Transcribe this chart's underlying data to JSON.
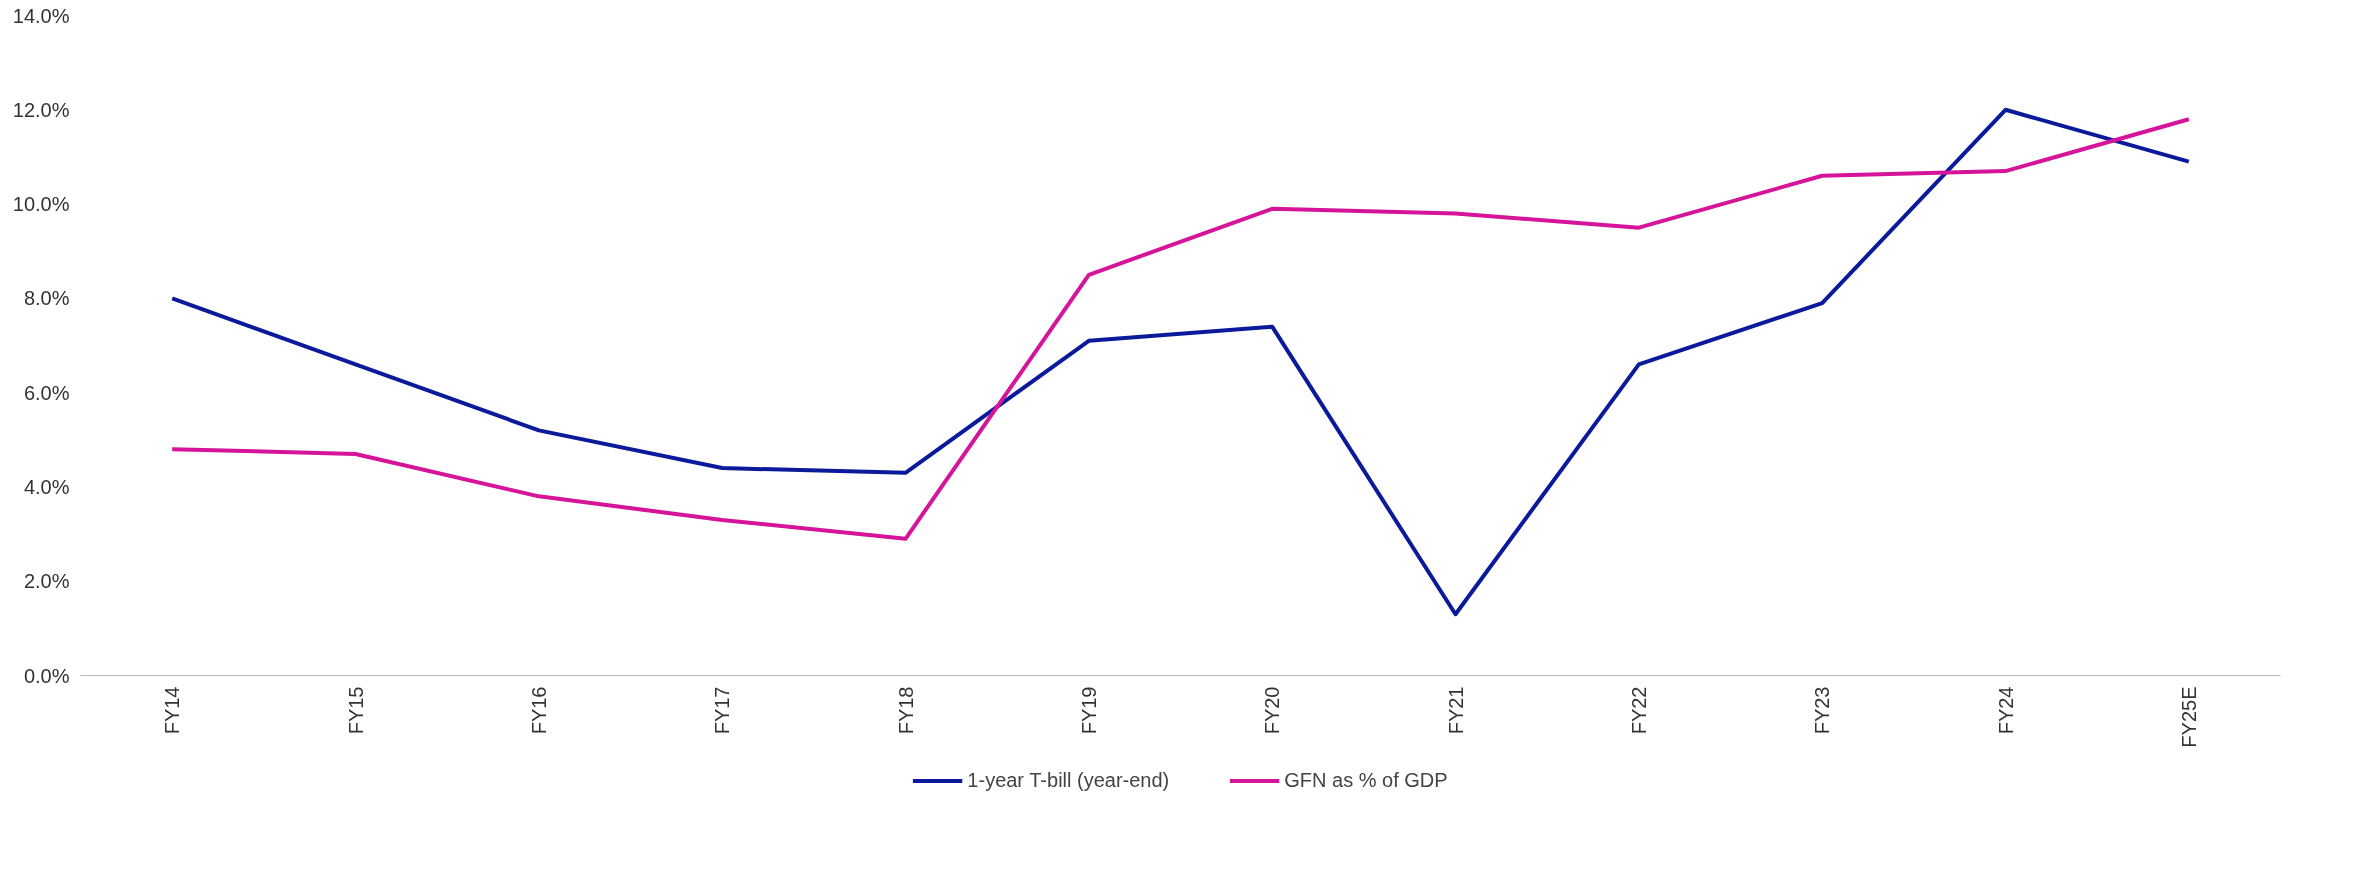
{
  "chart_data": {
    "type": "line",
    "categories": [
      "FY14",
      "FY15",
      "FY16",
      "FY17",
      "FY18",
      "FY19",
      "FY20",
      "FY21",
      "FY22",
      "FY23",
      "FY24",
      "FY25E"
    ],
    "series": [
      {
        "name": "1-year T-bill (year-end)",
        "color": "#0a1a9a",
        "values": [
          8.0,
          6.6,
          5.2,
          4.4,
          4.3,
          7.1,
          7.4,
          1.3,
          6.6,
          7.9,
          12.0,
          10.9
        ]
      },
      {
        "name": "GFN as % of GDP",
        "color": "#d6149a",
        "values": [
          4.8,
          4.7,
          3.8,
          3.3,
          2.9,
          8.5,
          9.9,
          9.8,
          9.5,
          10.6,
          10.7,
          11.8
        ]
      }
    ],
    "ylim": [
      0,
      14
    ],
    "yticks": [
      {
        "value": 0,
        "label": "0.0%"
      },
      {
        "value": 2,
        "label": "2.0%"
      },
      {
        "value": 4,
        "label": "4.0%"
      },
      {
        "value": 6,
        "label": "6.0%"
      },
      {
        "value": 8,
        "label": "8.0%"
      },
      {
        "value": 10,
        "label": "10.0%"
      },
      {
        "value": 12,
        "label": "12.0%"
      },
      {
        "value": 14,
        "label": "14.0%"
      }
    ],
    "grid": false,
    "legend": "bottom",
    "line_style": "solid",
    "marker": "none"
  }
}
